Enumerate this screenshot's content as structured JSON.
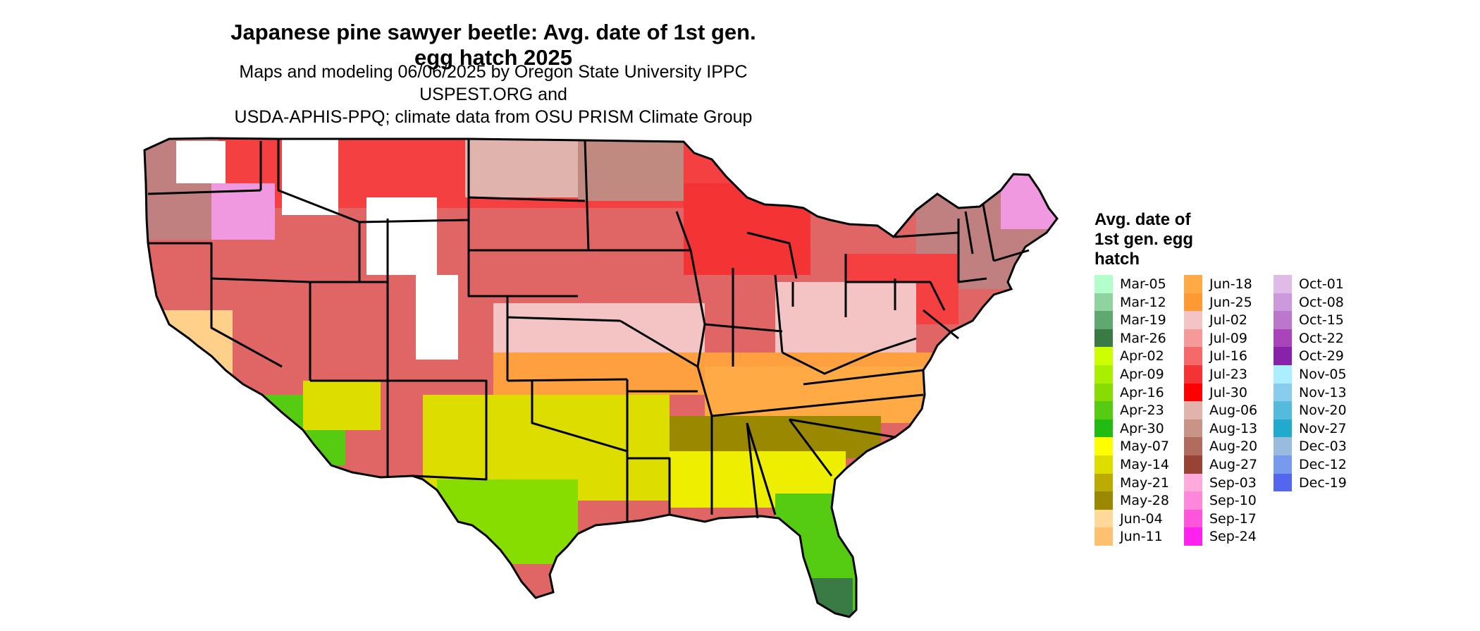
{
  "title": "Japanese pine sawyer beetle: Avg. date of 1st gen. egg hatch 2025",
  "subtitle_line1": "Maps and modeling 06/06/2025 by Oregon State University IPPC USPEST.ORG and",
  "subtitle_line2": "USDA-APHIS-PPQ; climate data from OSU PRISM Climate Group",
  "legend": {
    "title": [
      "Avg. date of",
      "1st gen. egg",
      "hatch"
    ],
    "items": [
      {
        "label": "Mar-05",
        "color": "#b3ffcc"
      },
      {
        "label": "Mar-12",
        "color": "#8fd49e"
      },
      {
        "label": "Mar-19",
        "color": "#5fa86f"
      },
      {
        "label": "Mar-26",
        "color": "#3a7a45"
      },
      {
        "label": "Apr-02",
        "color": "#ccff00"
      },
      {
        "label": "Apr-09",
        "color": "#aaee00"
      },
      {
        "label": "Apr-16",
        "color": "#88dd00"
      },
      {
        "label": "Apr-23",
        "color": "#55cc11"
      },
      {
        "label": "Apr-30",
        "color": "#22bb11"
      },
      {
        "label": "May-07",
        "color": "#ffff00"
      },
      {
        "label": "May-14",
        "color": "#dddd00"
      },
      {
        "label": "May-21",
        "color": "#bbaa00"
      },
      {
        "label": "May-28",
        "color": "#998800"
      },
      {
        "label": "Jun-04",
        "color": "#ffd89a"
      },
      {
        "label": "Jun-11",
        "color": "#ffc070"
      },
      {
        "label": "Jun-18",
        "color": "#ffaa44"
      },
      {
        "label": "Jun-25",
        "color": "#ff9933"
      },
      {
        "label": "Jul-02",
        "color": "#f4c4c4"
      },
      {
        "label": "Jul-09",
        "color": "#f49a9a"
      },
      {
        "label": "Jul-16",
        "color": "#f46a6a"
      },
      {
        "label": "Jul-23",
        "color": "#f43434"
      },
      {
        "label": "Jul-30",
        "color": "#ff0000"
      },
      {
        "label": "Aug-06",
        "color": "#e0b4ad"
      },
      {
        "label": "Aug-13",
        "color": "#c89488"
      },
      {
        "label": "Aug-20",
        "color": "#b06c5c"
      },
      {
        "label": "Aug-27",
        "color": "#984434"
      },
      {
        "label": "Sep-03",
        "color": "#ffaadd"
      },
      {
        "label": "Sep-10",
        "color": "#ff88dd"
      },
      {
        "label": "Sep-17",
        "color": "#ff55dd"
      },
      {
        "label": "Sep-24",
        "color": "#ff22ee"
      },
      {
        "label": "Oct-01",
        "color": "#e0bbe8"
      },
      {
        "label": "Oct-08",
        "color": "#cc99dd"
      },
      {
        "label": "Oct-15",
        "color": "#bb77cc"
      },
      {
        "label": "Oct-22",
        "color": "#aa44bb"
      },
      {
        "label": "Oct-29",
        "color": "#8822aa"
      },
      {
        "label": "Nov-05",
        "color": "#aaeeff"
      },
      {
        "label": "Nov-13",
        "color": "#88ccee"
      },
      {
        "label": "Nov-20",
        "color": "#55bbdd"
      },
      {
        "label": "Nov-27",
        "color": "#22aacc"
      },
      {
        "label": "Dec-03",
        "color": "#99bbdd"
      },
      {
        "label": "Dec-12",
        "color": "#7799ee"
      },
      {
        "label": "Dec-19",
        "color": "#5566ee"
      }
    ]
  }
}
